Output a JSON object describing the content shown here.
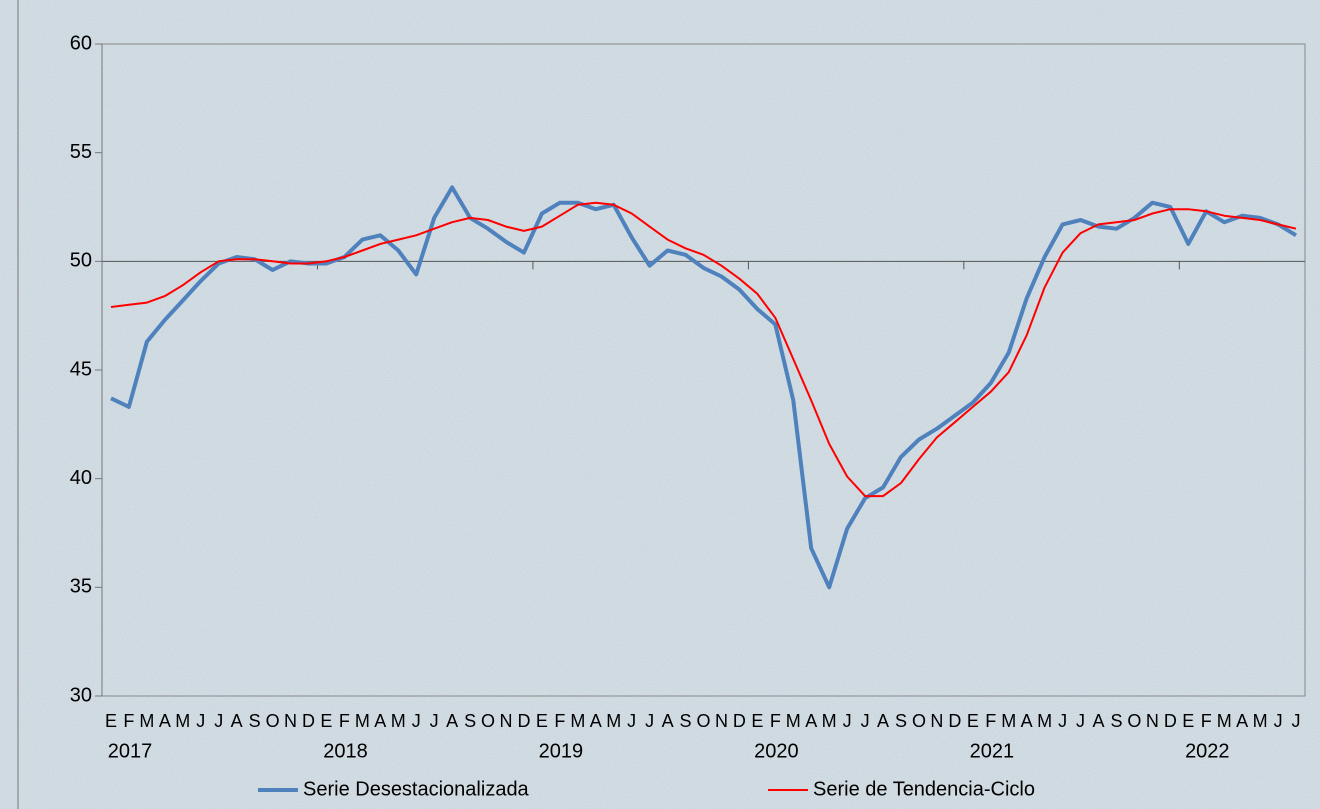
{
  "chart_data": {
    "type": "line",
    "categories": [
      "E",
      "F",
      "M",
      "A",
      "M",
      "J",
      "J",
      "A",
      "S",
      "O",
      "N",
      "D",
      "E",
      "F",
      "M",
      "A",
      "M",
      "J",
      "J",
      "A",
      "S",
      "O",
      "N",
      "D",
      "E",
      "F",
      "M",
      "A",
      "M",
      "J",
      "J",
      "A",
      "S",
      "O",
      "N",
      "D",
      "E",
      "F",
      "M",
      "A",
      "M",
      "J",
      "J",
      "A",
      "S",
      "O",
      "N",
      "D",
      "E",
      "F",
      "M",
      "A",
      "M",
      "J",
      "J",
      "A",
      "S",
      "O",
      "N",
      "D",
      "E",
      "F",
      "M",
      "A",
      "M",
      "J",
      "J"
    ],
    "year_labels": [
      "2017",
      "2018",
      "2019",
      "2020",
      "2021",
      "2022"
    ],
    "series": [
      {
        "name": "Serie Desestacionalizada",
        "color": "#4f81bd",
        "width": 4,
        "values": [
          43.7,
          43.3,
          46.3,
          47.3,
          48.2,
          49.1,
          49.9,
          50.2,
          50.1,
          49.6,
          50.0,
          49.9,
          49.9,
          50.2,
          51.0,
          51.2,
          50.5,
          49.4,
          52.0,
          53.4,
          52.0,
          51.5,
          50.9,
          50.4,
          52.2,
          52.7,
          52.7,
          52.4,
          52.6,
          51.1,
          49.8,
          50.5,
          50.3,
          49.7,
          49.3,
          48.7,
          47.8,
          47.1,
          43.6,
          36.8,
          35.0,
          37.7,
          39.1,
          39.6,
          41.0,
          41.8,
          42.3,
          42.9,
          43.5,
          44.4,
          45.8,
          48.3,
          50.2,
          51.7,
          51.9,
          51.6,
          51.5,
          52.0,
          52.7,
          52.5,
          50.8,
          52.3,
          51.8,
          52.1,
          52.0,
          51.7,
          51.2
        ]
      },
      {
        "name": "Serie de Tendencia-Ciclo",
        "color": "#ff0000",
        "width": 2,
        "values": [
          47.9,
          48.0,
          48.1,
          48.4,
          48.9,
          49.5,
          50.0,
          50.1,
          50.1,
          50.0,
          49.9,
          49.9,
          50.0,
          50.2,
          50.5,
          50.8,
          51.0,
          51.2,
          51.5,
          51.8,
          52.0,
          51.9,
          51.6,
          51.4,
          51.6,
          52.1,
          52.6,
          52.7,
          52.6,
          52.2,
          51.6,
          51.0,
          50.6,
          50.3,
          49.8,
          49.2,
          48.5,
          47.4,
          45.5,
          43.6,
          41.6,
          40.1,
          39.2,
          39.2,
          39.8,
          40.9,
          41.9,
          42.6,
          43.3,
          44.0,
          44.9,
          46.6,
          48.8,
          50.4,
          51.3,
          51.7,
          51.8,
          51.9,
          52.2,
          52.4,
          52.4,
          52.3,
          52.1,
          52.0,
          51.9,
          51.7,
          51.5
        ]
      }
    ],
    "ylim": [
      30,
      60
    ],
    "yticks": [
      30,
      35,
      40,
      45,
      50,
      55,
      60
    ],
    "x_axis_crosses": 50,
    "grid": false,
    "legend": "bottom"
  }
}
